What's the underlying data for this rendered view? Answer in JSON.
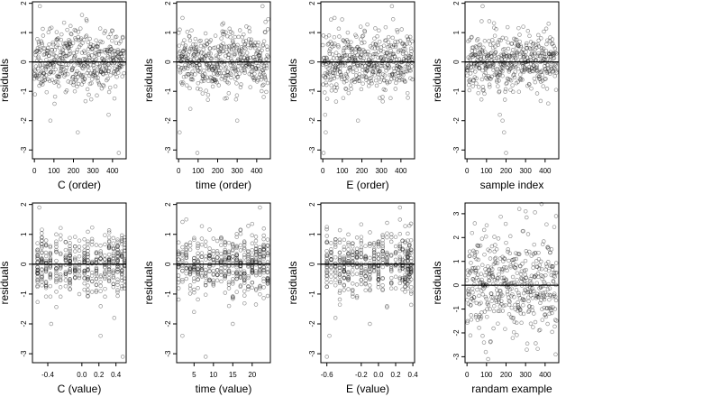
{
  "chart_data": [
    {
      "type": "scatter",
      "xlabel": "C (order)",
      "ylabel": "residuals",
      "xlim": [
        -10,
        470
      ],
      "ylim": [
        -3.3,
        2.05
      ],
      "xticks": [
        0,
        100,
        200,
        300,
        400
      ],
      "yticks": [
        -3,
        -2,
        -1,
        0,
        1,
        2
      ],
      "hline": 0,
      "n": 460,
      "x_mode": "index",
      "seed": 11,
      "dist": "skew",
      "points": [
        [
          82,
          -2.0
        ],
        [
          222,
          -2.4
        ],
        [
          432,
          -3.1
        ],
        [
          380,
          -1.8
        ],
        [
          244,
          1.6
        ],
        [
          28,
          1.9
        ]
      ]
    },
    {
      "type": "scatter",
      "xlabel": "time (order)",
      "ylabel": "residuals",
      "xlim": [
        -10,
        470
      ],
      "ylim": [
        -3.3,
        2.05
      ],
      "xticks": [
        0,
        100,
        200,
        300,
        400
      ],
      "yticks": [
        -3,
        -2,
        -1,
        0,
        1,
        2
      ],
      "hline": 0,
      "n": 460,
      "x_mode": "index",
      "seed": 23,
      "dist": "skew",
      "points": [
        [
          96,
          -3.1
        ],
        [
          5,
          -2.4
        ],
        [
          60,
          -1.6
        ],
        [
          300,
          -2.0
        ],
        [
          430,
          1.9
        ],
        [
          20,
          1.5
        ]
      ]
    },
    {
      "type": "scatter",
      "xlabel": "E (order)",
      "ylabel": "residuals",
      "xlim": [
        -10,
        470
      ],
      "ylim": [
        -3.3,
        2.05
      ],
      "xticks": [
        0,
        100,
        200,
        300,
        400
      ],
      "yticks": [
        -3,
        -2,
        -1,
        0,
        1,
        2
      ],
      "hline": 0,
      "n": 460,
      "x_mode": "index",
      "seed": 37,
      "dist": "skew",
      "points": [
        [
          4,
          -3.1
        ],
        [
          15,
          -2.4
        ],
        [
          12,
          -1.8
        ],
        [
          180,
          -2.0
        ],
        [
          354,
          1.9
        ],
        [
          60,
          1.5
        ]
      ]
    },
    {
      "type": "scatter",
      "xlabel": "sample index",
      "ylabel": "residuals",
      "xlim": [
        -10,
        470
      ],
      "ylim": [
        -3.3,
        2.05
      ],
      "xticks": [
        0,
        100,
        200,
        300,
        400
      ],
      "yticks": [
        -3,
        -2,
        -1,
        0,
        1,
        2
      ],
      "hline": 0,
      "n": 460,
      "x_mode": "index",
      "seed": 41,
      "dist": "skew",
      "points": [
        [
          200,
          -3.1
        ],
        [
          190,
          -2.4
        ],
        [
          182,
          -2.0
        ],
        [
          168,
          -1.8
        ],
        [
          80,
          1.9
        ],
        [
          288,
          1.2
        ]
      ]
    },
    {
      "type": "scatter",
      "xlabel": "C (value)",
      "ylabel": "residuals",
      "xlim": [
        -0.58,
        0.52
      ],
      "ylim": [
        -3.3,
        2.05
      ],
      "xticks": [
        -0.4,
        0.0,
        0.2,
        0.4
      ],
      "xtick_labels": [
        "-0.4",
        "0.0",
        "0.2",
        "0.4"
      ],
      "yticks": [
        -3,
        -2,
        -1,
        0,
        1,
        2
      ],
      "hline": 0,
      "n": 460,
      "x_mode": "levels",
      "seed": 53,
      "dist": "skew",
      "levels": [
        -0.52,
        -0.47,
        -0.42,
        -0.37,
        -0.3,
        -0.25,
        -0.19,
        -0.14,
        -0.08,
        -0.03,
        0.03,
        0.07,
        0.12,
        0.17,
        0.22,
        0.27,
        0.32,
        0.37,
        0.42,
        0.47,
        0.5
      ],
      "points": [
        [
          -0.5,
          1.9
        ],
        [
          -0.36,
          -2.0
        ],
        [
          0.22,
          -2.4
        ],
        [
          0.38,
          -1.8
        ],
        [
          0.48,
          -3.1
        ]
      ]
    },
    {
      "type": "scatter",
      "xlabel": "time (value)",
      "ylabel": "residuals",
      "xlim": [
        0.5,
        24.7
      ],
      "ylim": [
        -3.3,
        2.05
      ],
      "xticks": [
        5,
        10,
        15,
        20
      ],
      "yticks": [
        -3,
        -2,
        -1,
        0,
        1,
        2
      ],
      "hline": 0,
      "n": 460,
      "x_mode": "levels",
      "seed": 67,
      "dist": "skew",
      "levels": [
        1,
        2,
        3,
        4,
        5,
        6,
        7,
        8,
        9,
        10,
        11,
        12,
        13,
        14,
        15,
        16,
        17,
        18,
        19,
        20,
        21,
        22,
        23,
        24
      ],
      "points": [
        [
          2,
          -2.4
        ],
        [
          5,
          -1.6
        ],
        [
          8,
          -3.1
        ],
        [
          15,
          -2.0
        ],
        [
          22,
          1.9
        ],
        [
          3,
          1.5
        ]
      ]
    },
    {
      "type": "scatter",
      "xlabel": "E (value)",
      "ylabel": "residuals",
      "xlim": [
        -0.67,
        0.42
      ],
      "ylim": [
        -3.3,
        2.05
      ],
      "xticks": [
        -0.6,
        -0.2,
        0.0,
        0.2,
        0.4
      ],
      "xtick_labels": [
        "-0.6",
        "-0.2",
        "0.0",
        "0.2",
        "0.4"
      ],
      "yticks": [
        -3,
        -2,
        -1,
        0,
        1,
        2
      ],
      "hline": 0,
      "n": 460,
      "x_mode": "levels",
      "seed": 79,
      "dist": "skew",
      "levels": [
        -0.6,
        -0.55,
        -0.5,
        -0.45,
        -0.4,
        -0.35,
        -0.3,
        -0.25,
        -0.2,
        -0.15,
        -0.1,
        -0.05,
        0.0,
        0.05,
        0.1,
        0.15,
        0.2,
        0.25,
        0.28,
        0.31,
        0.34,
        0.36,
        0.38
      ],
      "points": [
        [
          -0.6,
          -3.1
        ],
        [
          -0.57,
          -2.4
        ],
        [
          -0.5,
          -1.8
        ],
        [
          -0.1,
          -2.0
        ],
        [
          0.25,
          1.9
        ]
      ]
    },
    {
      "type": "scatter",
      "xlabel": "randam example",
      "ylabel": "residuals",
      "xlim": [
        -10,
        470
      ],
      "ylim": [
        -3.25,
        3.45
      ],
      "xticks": [
        0,
        100,
        200,
        300,
        400
      ],
      "yticks": [
        -3,
        -2,
        -1,
        0,
        1,
        2,
        3
      ],
      "hline": 0,
      "n": 460,
      "x_mode": "index",
      "seed": 97,
      "dist": "normal",
      "points": [
        [
          108,
          -3.1
        ],
        [
          96,
          -2.8
        ],
        [
          454,
          -2.9
        ],
        [
          268,
          3.2
        ],
        [
          300,
          3.1
        ],
        [
          456,
          2.9
        ],
        [
          40,
          2.6
        ]
      ]
    }
  ]
}
